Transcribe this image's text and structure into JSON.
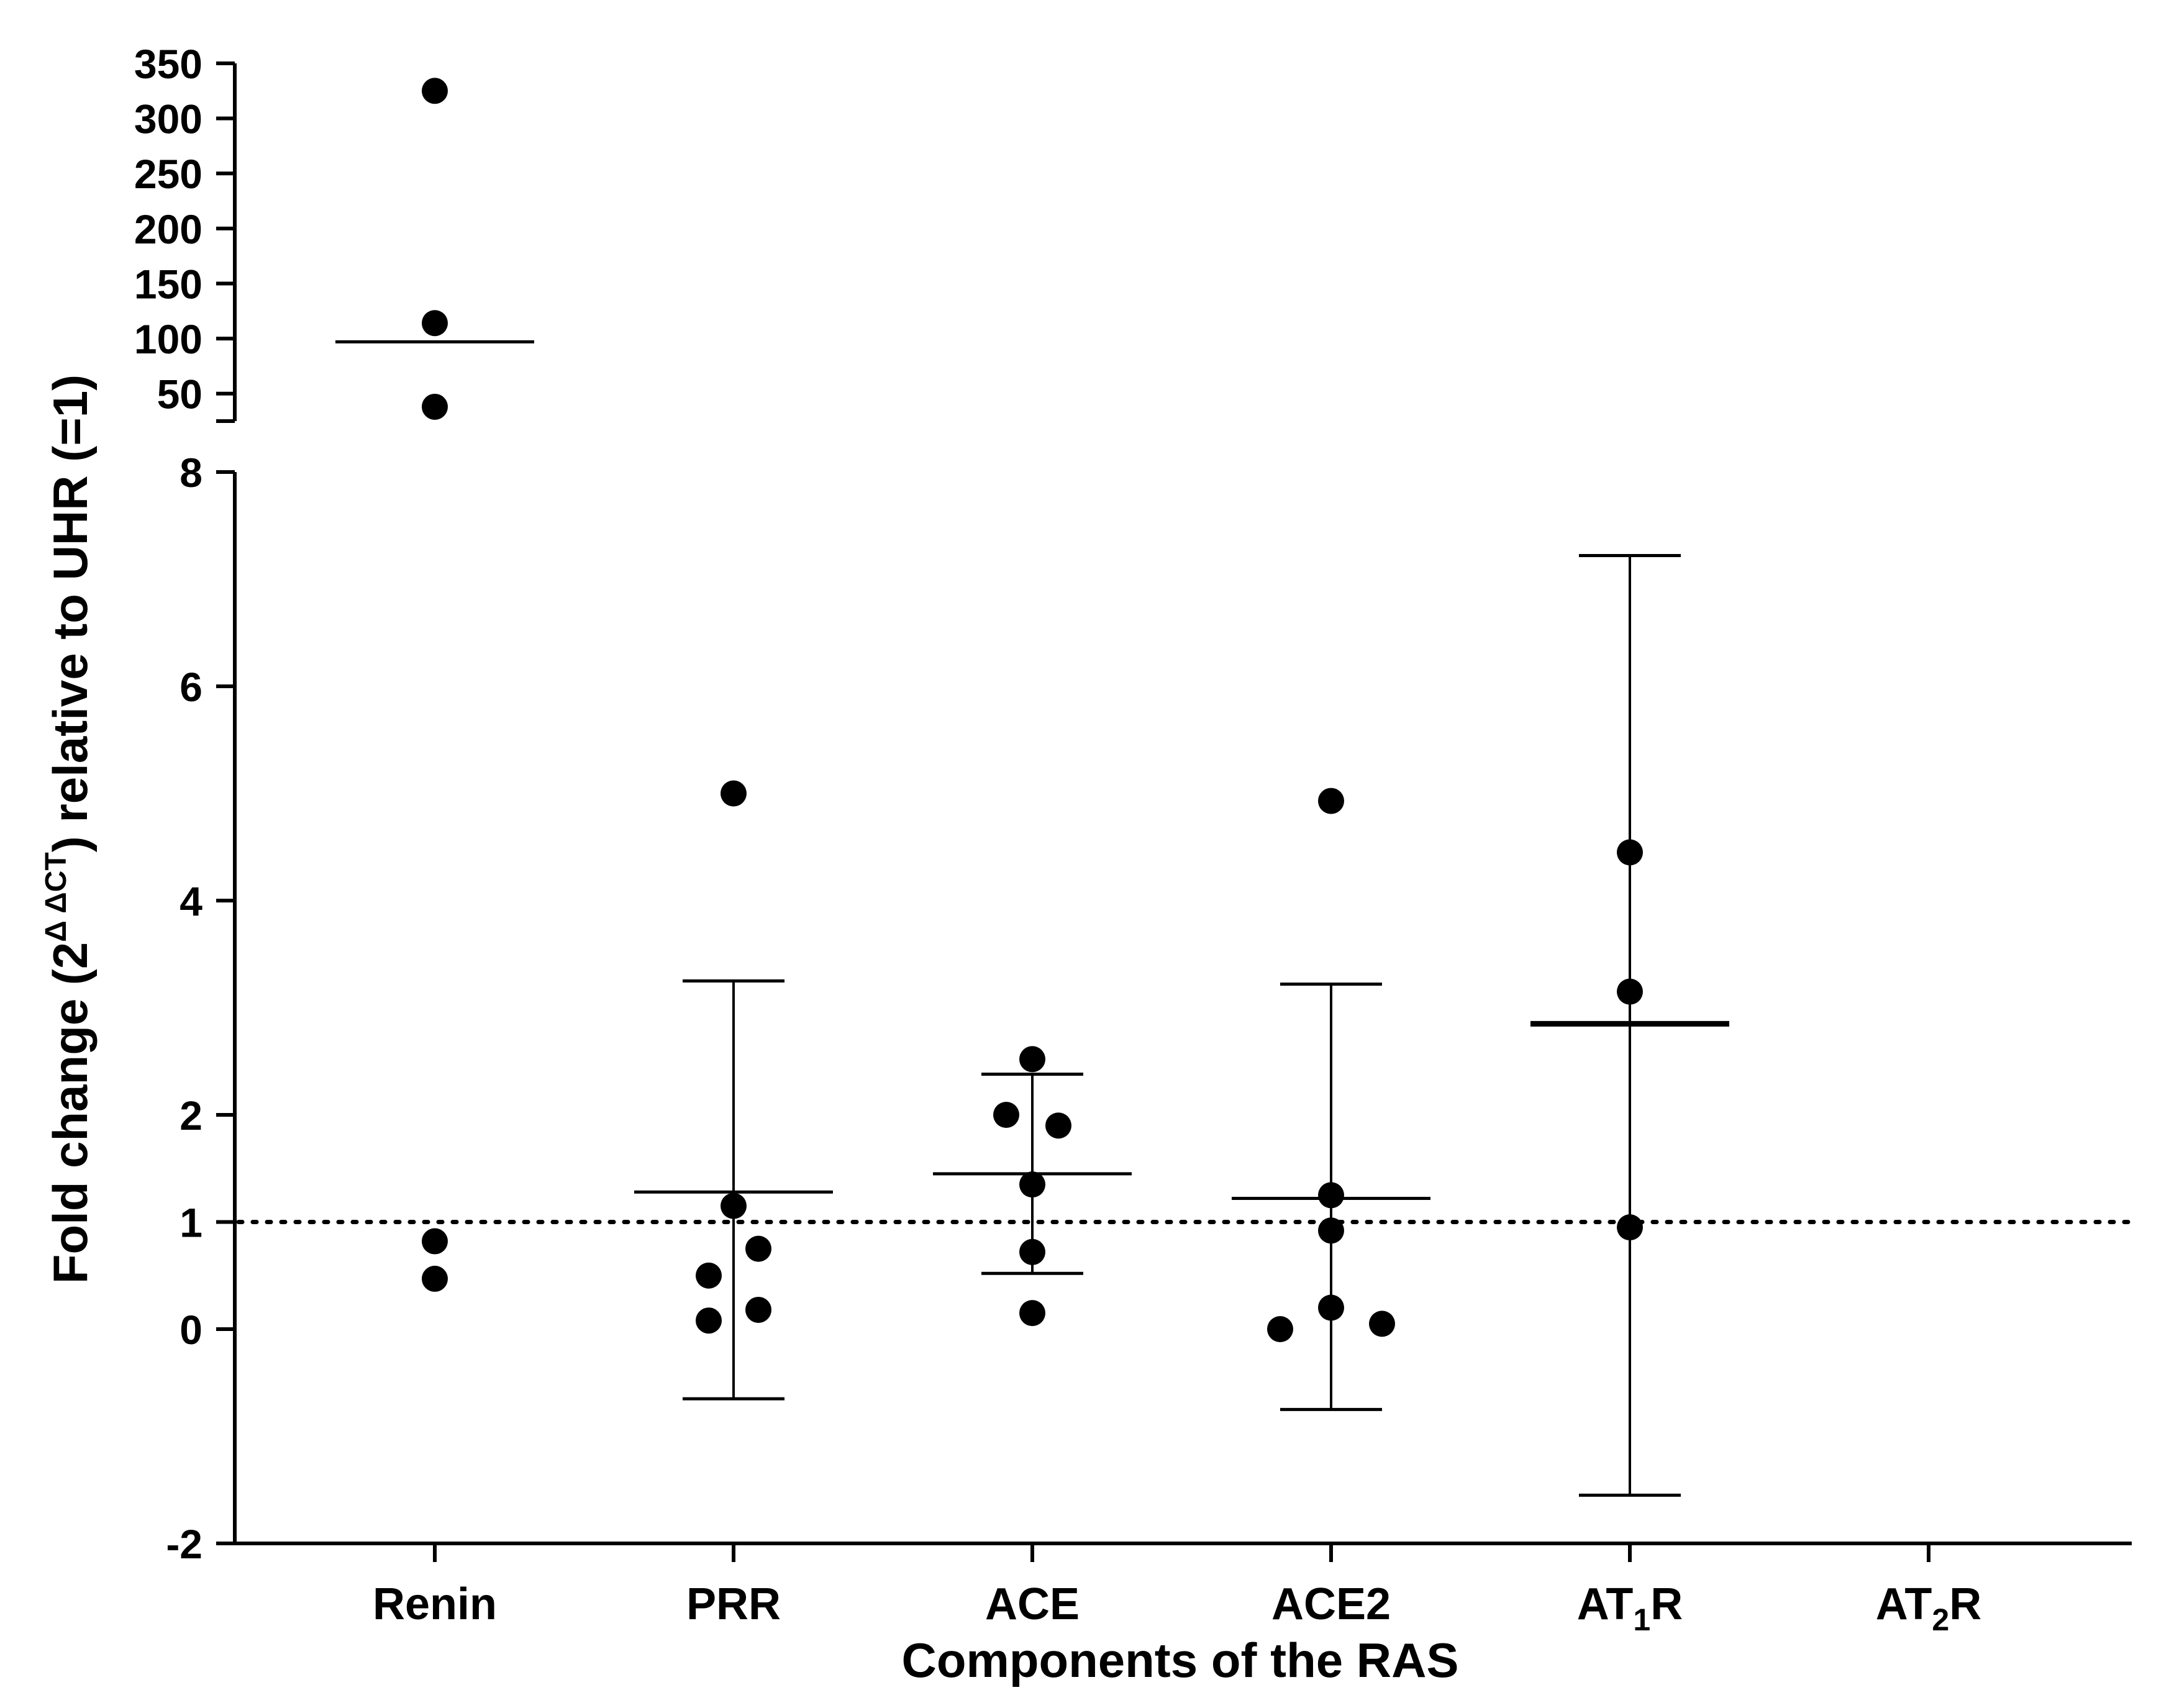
{
  "chart_data": {
    "type": "scatter",
    "title": "",
    "xlabel": "Components of the RAS",
    "ylabel": {
      "prefix": "Fold change (2",
      "superscript": "Δ ΔCT",
      "suffix": ") relative to UHR (=1)"
    },
    "categories": [
      {
        "label": "Renin",
        "base": "Renin",
        "sub": "",
        "rest": ""
      },
      {
        "label": "PRR",
        "base": "PRR",
        "sub": "",
        "rest": ""
      },
      {
        "label": "ACE",
        "base": "ACE",
        "sub": "",
        "rest": ""
      },
      {
        "label": "ACE2",
        "base": "ACE2",
        "sub": "",
        "rest": ""
      },
      {
        "label": "AT1R",
        "base": "AT",
        "sub": "1",
        "rest": "R"
      },
      {
        "label": "AT2R",
        "base": "AT",
        "sub": "2",
        "rest": "R"
      }
    ],
    "y_axis": {
      "broken": true,
      "lower_segment": {
        "ylim": [
          -2,
          8
        ],
        "ticks": [
          -2,
          0,
          1,
          2,
          4,
          6,
          8
        ],
        "tick_labels": [
          "-2",
          "0",
          "1",
          "2",
          "4",
          "6",
          "8"
        ]
      },
      "upper_segment": {
        "ylim": [
          25,
          350
        ],
        "ticks": [
          50,
          100,
          150,
          200,
          250,
          300,
          350
        ],
        "tick_labels": [
          "50",
          "100",
          "150",
          "200",
          "250",
          "300",
          "350"
        ]
      }
    },
    "points": [
      {
        "category": "Renin",
        "values": [
          325,
          114,
          38,
          0.82,
          0.47
        ]
      },
      {
        "category": "PRR",
        "values": [
          5.0,
          1.15,
          0.75,
          0.5,
          0.18,
          0.08
        ]
      },
      {
        "category": "ACE",
        "values": [
          2.52,
          2.0,
          1.9,
          1.35,
          0.72,
          0.15
        ]
      },
      {
        "category": "ACE2",
        "values": [
          4.93,
          1.25,
          0.92,
          0.2,
          0.05,
          0.0
        ]
      },
      {
        "category": "AT1R",
        "values": [
          4.45,
          3.15,
          0.95
        ]
      },
      {
        "category": "AT2R",
        "values": []
      }
    ],
    "summary": [
      {
        "category": "Renin",
        "mean": 97,
        "segment": "upper",
        "error_bar": null
      },
      {
        "category": "PRR",
        "mean": 1.28,
        "segment": "lower",
        "error_bar": [
          -0.65,
          3.25
        ]
      },
      {
        "category": "ACE",
        "mean": 1.45,
        "segment": "lower",
        "error_bar": [
          0.52,
          2.38
        ]
      },
      {
        "category": "ACE2",
        "mean": 1.22,
        "segment": "lower",
        "error_bar": [
          -0.75,
          3.22
        ]
      },
      {
        "category": "AT1R",
        "mean": 2.85,
        "segment": "lower",
        "error_bar": [
          -1.55,
          7.22
        ]
      }
    ],
    "reference_line": {
      "y": 1,
      "style": "dotted"
    },
    "legend": null,
    "grid": false
  },
  "colors": {
    "ink": "#000000",
    "background": "#ffffff"
  }
}
